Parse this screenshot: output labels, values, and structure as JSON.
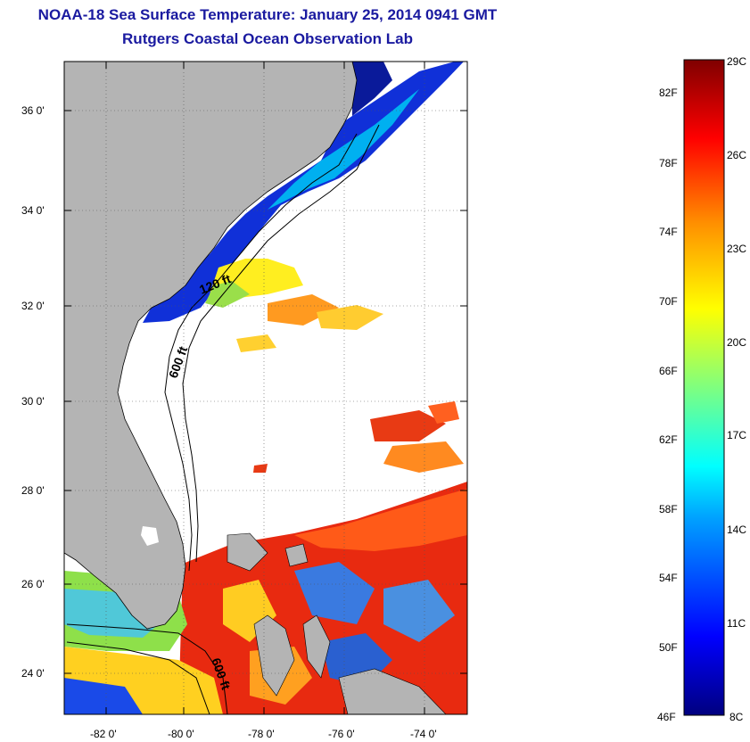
{
  "header": {
    "title": "NOAA-18 Sea Surface Temperature:  January 25, 2014 0941 GMT",
    "subtitle": "Rutgers Coastal Ocean Observation Lab"
  },
  "map": {
    "lat_ticks": [
      "36 0'",
      "34 0'",
      "32 0'",
      "30 0'",
      "28 0'",
      "26 0'",
      "24 0'"
    ],
    "lon_ticks": [
      "-82 0'",
      "-80 0'",
      "-78 0'",
      "-76 0'",
      "-74 0'"
    ],
    "lat_range": [
      23,
      37.2
    ],
    "lon_range": [
      -83,
      -72.5
    ],
    "contour_labels": [
      "120 ft",
      "600 ft",
      "600 ft"
    ],
    "land_color": "#b4b4b4"
  },
  "colorbar": {
    "f_labels": [
      "82F",
      "78F",
      "74F",
      "70F",
      "66F",
      "62F",
      "58F",
      "54F",
      "50F",
      "46F"
    ],
    "c_labels": [
      "29C",
      "26C",
      "23C",
      "20C",
      "17C",
      "14C",
      "11C",
      "8C"
    ],
    "range_c": [
      8,
      29
    ]
  }
}
